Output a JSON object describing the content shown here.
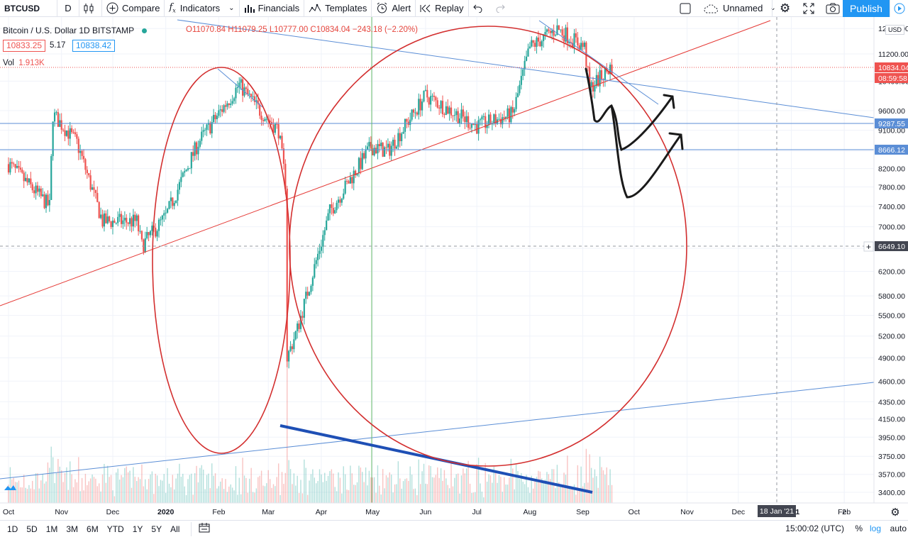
{
  "toolbar": {
    "symbol": "BTCUSD",
    "interval": "D",
    "compare": "Compare",
    "indicators": "Indicators",
    "financials": "Financials",
    "templates": "Templates",
    "alert": "Alert",
    "replay": "Replay",
    "layout_name": "Unnamed",
    "publish": "Publish"
  },
  "legend": {
    "title": "Bitcoin / U.S. Dollar  1D  BITSTAMP",
    "ohlc": "O11070.84  H11079.25  L10777.00  C10834.04  −243.18 (−2.20%)",
    "bid": "10833.25",
    "spread": "5.17",
    "ask": "10838.42",
    "volume_label": "Vol",
    "volume_value": "1.913K"
  },
  "price_axis": {
    "currency": "USD",
    "ticks": [
      "12000.00",
      "11200.00",
      "10400.00",
      "9600.00",
      "9100.00",
      "8600.00",
      "8200.00",
      "7800.00",
      "7400.00",
      "7000.00",
      "6600.00",
      "6200.00",
      "5800.00",
      "5500.00",
      "5200.00",
      "4900.00",
      "4600.00",
      "4350.00",
      "4150.00",
      "3950.00",
      "3750.00",
      "3570.00",
      "3400.00"
    ],
    "last_price": "10834.04",
    "countdown": "08:59:58",
    "level_1": "9287.55",
    "level_2": "8666.12",
    "crosshair_price": "6649.10"
  },
  "time_axis": {
    "ticks": [
      "Oct",
      "Nov",
      "Dec",
      "2020",
      "Feb",
      "Mar",
      "Apr",
      "May",
      "Jun",
      "Jul",
      "Aug",
      "Sep",
      "Oct",
      "Nov",
      "Dec",
      "2021",
      "Feb",
      "2"
    ],
    "crosshair_date": "18 Jan '21"
  },
  "bottom_bar": {
    "ranges": [
      "1D",
      "5D",
      "1M",
      "3M",
      "6M",
      "YTD",
      "1Y",
      "5Y",
      "All"
    ],
    "time": "15:00:02 (UTC)",
    "percent": "%",
    "log": "log",
    "auto": "auto"
  },
  "colors": {
    "up": "#26a69a",
    "down": "#ef5350",
    "accent": "#2196f3",
    "trend_red": "#e53935",
    "trend_blue": "#5b8ed6",
    "circle_red": "#d32f2f",
    "bold_blue": "#1e4fb5"
  },
  "chart_data": {
    "type": "candlestick",
    "title": "Bitcoin / U.S. Dollar 1D BITSTAMP",
    "y_scale": "log",
    "ylim": [
      3300,
      12300
    ],
    "x_range": [
      "2019-10-01",
      "2021-02-20"
    ],
    "keypoints": [
      {
        "date": "2019-10-01",
        "close": 8300
      },
      {
        "date": "2019-10-25",
        "close": 7400
      },
      {
        "date": "2019-10-27",
        "close": 9500
      },
      {
        "date": "2019-11-10",
        "close": 8800
      },
      {
        "date": "2019-11-25",
        "close": 7100
      },
      {
        "date": "2019-12-15",
        "close": 7100
      },
      {
        "date": "2019-12-18",
        "close": 6650
      },
      {
        "date": "2020-01-01",
        "close": 7200
      },
      {
        "date": "2020-01-20",
        "close": 8800
      },
      {
        "date": "2020-02-13",
        "close": 10300
      },
      {
        "date": "2020-02-25",
        "close": 9600
      },
      {
        "date": "2020-03-07",
        "close": 9100
      },
      {
        "date": "2020-03-11",
        "close": 7900
      },
      {
        "date": "2020-03-12",
        "close": 4900
      },
      {
        "date": "2020-03-18",
        "close": 5300
      },
      {
        "date": "2020-04-06",
        "close": 7300
      },
      {
        "date": "2020-04-30",
        "close": 8700
      },
      {
        "date": "2020-05-10",
        "close": 8600
      },
      {
        "date": "2020-06-01",
        "close": 10000
      },
      {
        "date": "2020-07-01",
        "close": 9200
      },
      {
        "date": "2020-07-22",
        "close": 9500
      },
      {
        "date": "2020-08-01",
        "close": 11400
      },
      {
        "date": "2020-08-17",
        "close": 12000
      },
      {
        "date": "2020-09-02",
        "close": 11400
      },
      {
        "date": "2020-09-05",
        "close": 10200
      },
      {
        "date": "2020-09-18",
        "close": 10834
      }
    ],
    "volume_label": "Vol 1.913K"
  }
}
